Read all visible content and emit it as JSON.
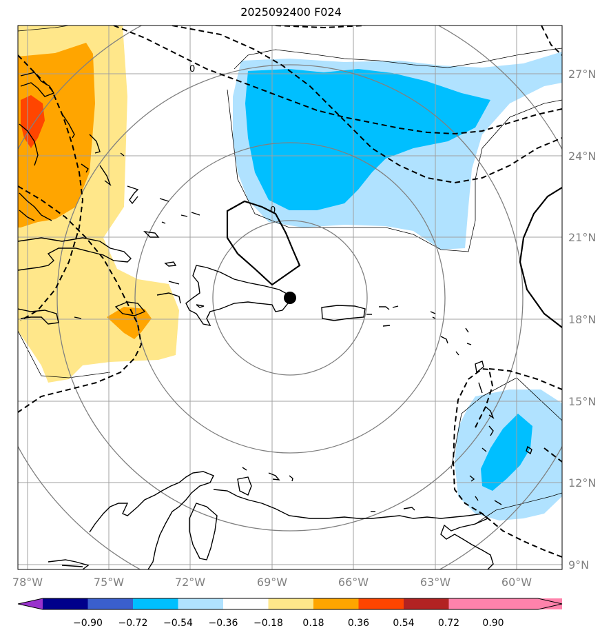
{
  "title": "2025092400 F024",
  "axes": {
    "lon_labels": [
      "78°W",
      "75°W",
      "72°W",
      "69°W",
      "66°W",
      "63°W",
      "60°W"
    ],
    "lat_labels": [
      "27°N",
      "24°N",
      "21°N",
      "18°N",
      "15°N",
      "12°N",
      "9°N"
    ]
  },
  "colorbar": {
    "tick_labels": [
      "−0.90",
      "−0.72",
      "−0.54",
      "−0.36",
      "−0.18",
      "0.18",
      "0.36",
      "0.54",
      "0.72",
      "0.90"
    ],
    "colors": [
      "#9932cc",
      "#00008b",
      "#3a5fcd",
      "#00bfff",
      "#b0e2ff",
      "#ffffff",
      "#ffe78a",
      "#ffa500",
      "#ff4500",
      "#b22222",
      "#ff82ab"
    ]
  },
  "contour_labels": {
    "north": "0",
    "center": "0"
  },
  "center_marker": {
    "lat": 18.8,
    "lon": -68.3
  }
}
